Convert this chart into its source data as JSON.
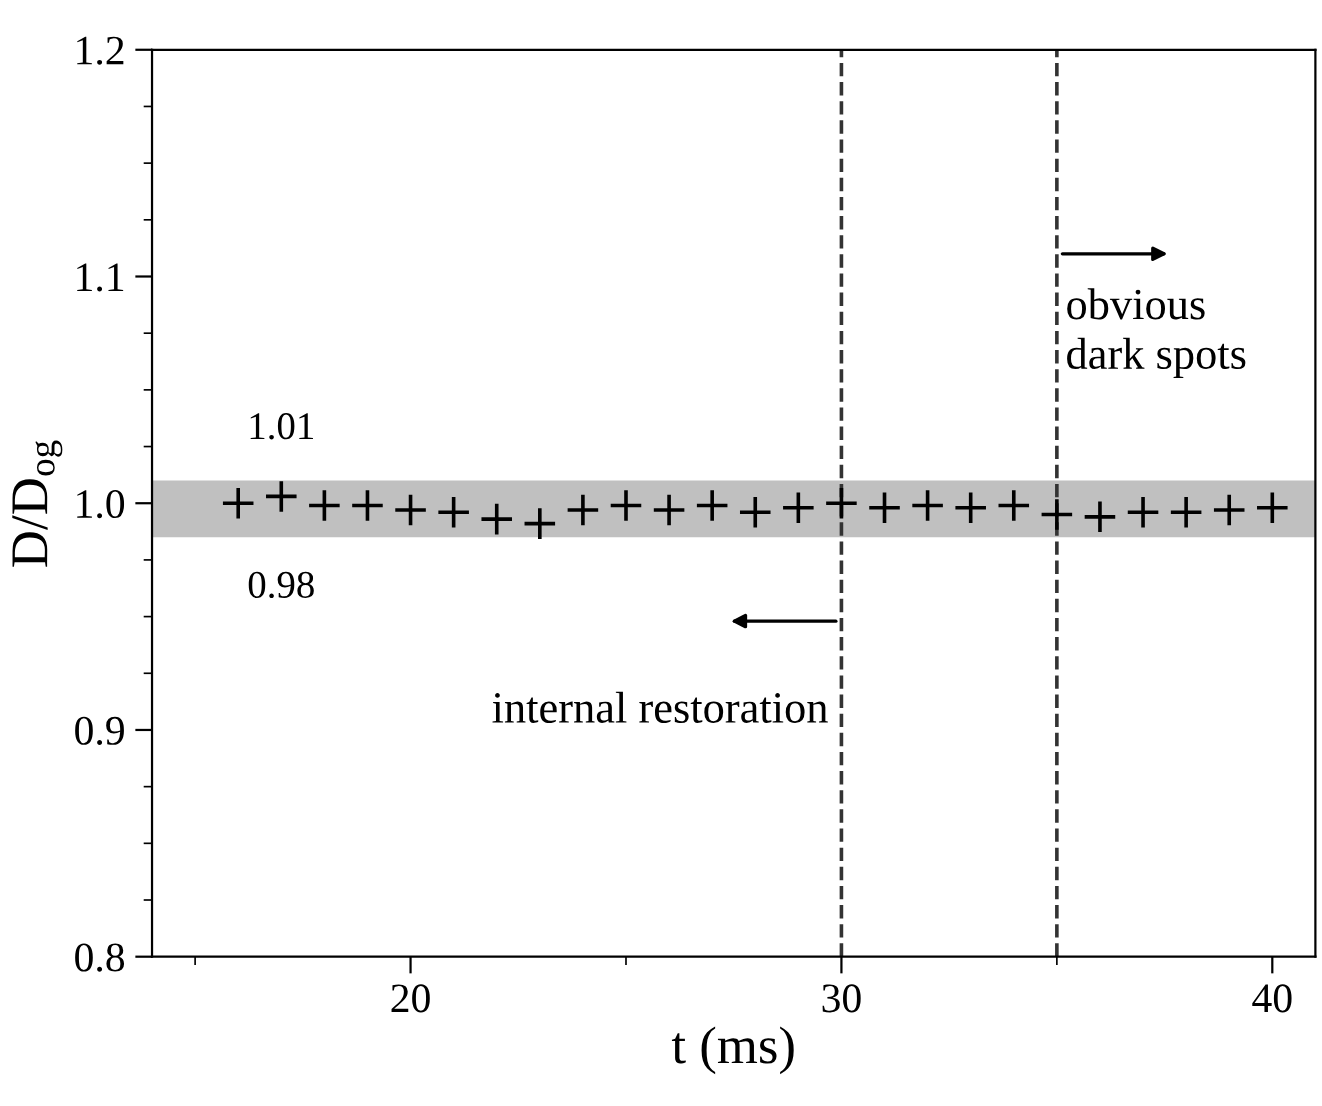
{
  "chart_data": {
    "type": "scatter",
    "xlabel": "t (ms)",
    "ylabel": "D/D$_{og}$",
    "x": [
      16,
      17,
      18,
      19,
      20,
      21,
      22,
      23,
      24,
      25,
      26,
      27,
      28,
      29,
      30,
      31,
      32,
      33,
      34,
      35,
      36,
      37,
      38,
      39,
      40
    ],
    "values": [
      1.0,
      1.003,
      0.999,
      0.999,
      0.997,
      0.996,
      0.993,
      0.991,
      0.997,
      0.999,
      0.997,
      0.999,
      0.996,
      0.998,
      1.0,
      0.998,
      0.999,
      0.998,
      0.999,
      0.995,
      0.994,
      0.996,
      0.996,
      0.997,
      0.998
    ],
    "color": "#000000",
    "marker": "cross",
    "xlim": [
      14,
      41
    ],
    "xticks": [
      20,
      30,
      40
    ],
    "ylim": [
      0.8,
      1.2
    ],
    "yticks": [
      0.8,
      0.9,
      {
        "value": 1,
        "label": "1.0"
      },
      1.1,
      1.2
    ],
    "bands": [
      {
        "axis": "y",
        "from": 0.985,
        "to": 1.01,
        "color": "#c0c0c0"
      }
    ],
    "ref_lines": [
      {
        "axis": "x",
        "value": 30,
        "label": "internal restoration",
        "line_style": "dashed",
        "color": "#333333"
      },
      {
        "axis": "x",
        "value": 35,
        "label": "obvious\ndark spots",
        "line_style": "dashed",
        "color": "#333333"
      }
    ],
    "annotations": [
      {
        "text": "1.01",
        "x": 17,
        "y": 1.01
      },
      {
        "text": "0.98",
        "x": 17,
        "y": 0.985
      }
    ],
    "grid": false,
    "legend": false
  }
}
